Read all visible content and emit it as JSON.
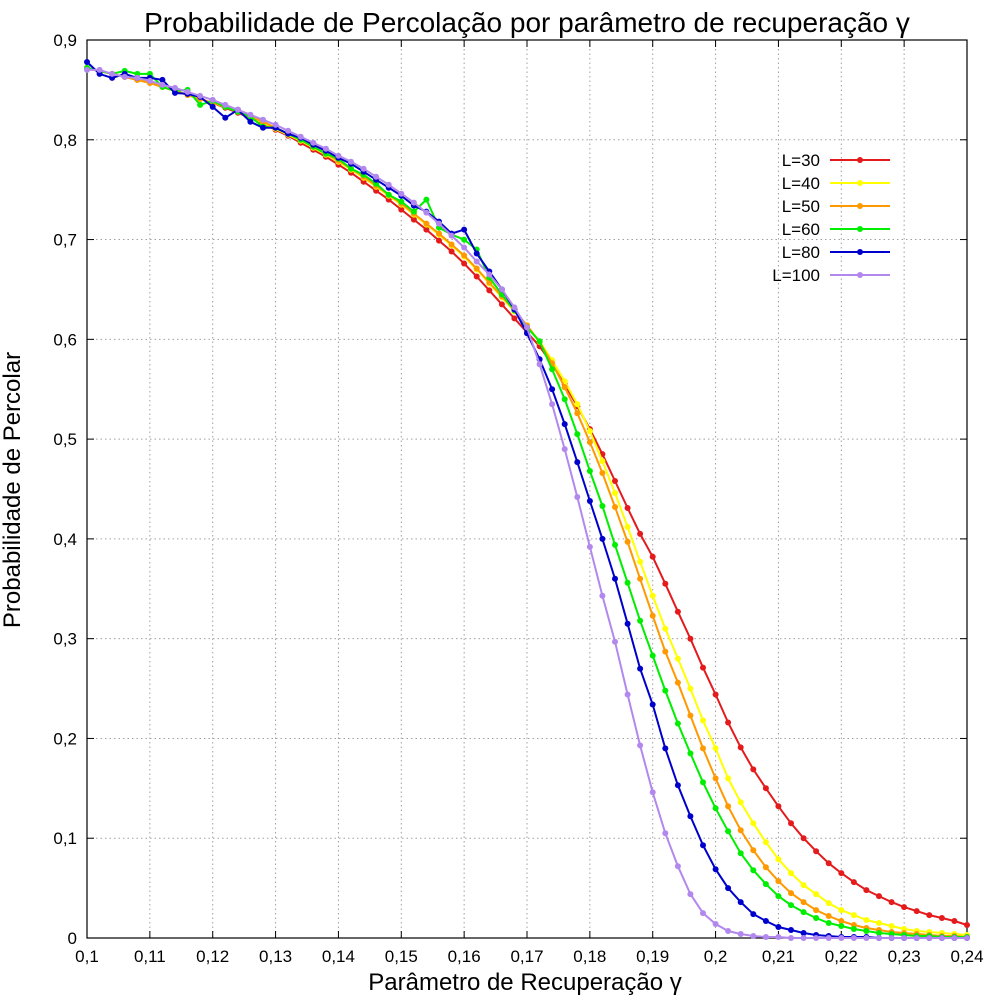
{
  "chart_data": {
    "type": "line",
    "title": "Probabilidade de Percolação por parâmetro de recuperação γ",
    "xlabel": "Parâmetro de Recuperação γ",
    "ylabel": "Probabilidade de Percolar",
    "xlim": [
      0.1,
      0.24
    ],
    "ylim": [
      0,
      0.9
    ],
    "grid": true,
    "legend_position": "top-right",
    "x_ticks": [
      {
        "v": 0.1,
        "label": "0,1"
      },
      {
        "v": 0.11,
        "label": "0,11"
      },
      {
        "v": 0.12,
        "label": "0,12"
      },
      {
        "v": 0.13,
        "label": "0,13"
      },
      {
        "v": 0.14,
        "label": "0,14"
      },
      {
        "v": 0.15,
        "label": "0,15"
      },
      {
        "v": 0.16,
        "label": "0,16"
      },
      {
        "v": 0.17,
        "label": "0,17"
      },
      {
        "v": 0.18,
        "label": "0,18"
      },
      {
        "v": 0.19,
        "label": "0,19"
      },
      {
        "v": 0.2,
        "label": "0,2"
      },
      {
        "v": 0.21,
        "label": "0,21"
      },
      {
        "v": 0.22,
        "label": "0,22"
      },
      {
        "v": 0.23,
        "label": "0,23"
      },
      {
        "v": 0.24,
        "label": "0,24"
      }
    ],
    "y_ticks": [
      {
        "v": 0.0,
        "label": "0"
      },
      {
        "v": 0.1,
        "label": "0,1"
      },
      {
        "v": 0.2,
        "label": "0,2"
      },
      {
        "v": 0.3,
        "label": "0,3"
      },
      {
        "v": 0.4,
        "label": "0,4"
      },
      {
        "v": 0.5,
        "label": "0,5"
      },
      {
        "v": 0.6,
        "label": "0,6"
      },
      {
        "v": 0.7,
        "label": "0,7"
      },
      {
        "v": 0.8,
        "label": "0,8"
      },
      {
        "v": 0.9,
        "label": "0,9"
      }
    ],
    "x": [
      0.1,
      0.102,
      0.104,
      0.106,
      0.108,
      0.11,
      0.112,
      0.114,
      0.116,
      0.118,
      0.12,
      0.122,
      0.124,
      0.126,
      0.128,
      0.13,
      0.132,
      0.134,
      0.136,
      0.138,
      0.14,
      0.142,
      0.144,
      0.146,
      0.148,
      0.15,
      0.152,
      0.154,
      0.156,
      0.158,
      0.16,
      0.162,
      0.164,
      0.166,
      0.168,
      0.17,
      0.172,
      0.174,
      0.176,
      0.178,
      0.18,
      0.182,
      0.184,
      0.186,
      0.188,
      0.19,
      0.192,
      0.194,
      0.196,
      0.198,
      0.2,
      0.202,
      0.204,
      0.206,
      0.208,
      0.21,
      0.212,
      0.214,
      0.216,
      0.218,
      0.22,
      0.222,
      0.224,
      0.226,
      0.228,
      0.23,
      0.232,
      0.234,
      0.236,
      0.238,
      0.24
    ],
    "series": [
      {
        "name": "L=30",
        "color": "#e41a1c",
        "values": [
          0.872,
          0.869,
          0.866,
          0.863,
          0.86,
          0.857,
          0.853,
          0.849,
          0.845,
          0.841,
          0.837,
          0.832,
          0.827,
          0.822,
          0.816,
          0.81,
          0.804,
          0.797,
          0.79,
          0.783,
          0.775,
          0.767,
          0.758,
          0.749,
          0.74,
          0.73,
          0.72,
          0.71,
          0.699,
          0.688,
          0.676,
          0.663,
          0.649,
          0.635,
          0.621,
          0.607,
          0.593,
          0.575,
          0.555,
          0.533,
          0.51,
          0.485,
          0.458,
          0.431,
          0.405,
          0.382,
          0.355,
          0.327,
          0.3,
          0.271,
          0.244,
          0.216,
          0.191,
          0.169,
          0.15,
          0.132,
          0.115,
          0.1,
          0.087,
          0.075,
          0.065,
          0.056,
          0.048,
          0.042,
          0.036,
          0.031,
          0.027,
          0.023,
          0.02,
          0.017,
          0.013
        ]
      },
      {
        "name": "L=40",
        "color": "#ffff00",
        "values": [
          0.872,
          0.869,
          0.866,
          0.863,
          0.86,
          0.857,
          0.853,
          0.849,
          0.845,
          0.841,
          0.837,
          0.833,
          0.828,
          0.823,
          0.817,
          0.811,
          0.805,
          0.799,
          0.792,
          0.785,
          0.778,
          0.77,
          0.762,
          0.753,
          0.744,
          0.735,
          0.725,
          0.715,
          0.705,
          0.694,
          0.683,
          0.67,
          0.656,
          0.642,
          0.628,
          0.614,
          0.598,
          0.579,
          0.558,
          0.535,
          0.508,
          0.478,
          0.446,
          0.412,
          0.377,
          0.343,
          0.31,
          0.28,
          0.25,
          0.218,
          0.19,
          0.16,
          0.136,
          0.115,
          0.096,
          0.079,
          0.065,
          0.053,
          0.044,
          0.035,
          0.028,
          0.023,
          0.018,
          0.015,
          0.012,
          0.009,
          0.007,
          0.006,
          0.005,
          0.004,
          0.003
        ]
      },
      {
        "name": "L=50",
        "color": "#ff9900",
        "values": [
          0.872,
          0.869,
          0.866,
          0.863,
          0.86,
          0.857,
          0.853,
          0.849,
          0.845,
          0.841,
          0.837,
          0.833,
          0.828,
          0.823,
          0.818,
          0.812,
          0.806,
          0.8,
          0.793,
          0.786,
          0.779,
          0.771,
          0.763,
          0.754,
          0.745,
          0.736,
          0.726,
          0.716,
          0.706,
          0.695,
          0.684,
          0.671,
          0.657,
          0.643,
          0.629,
          0.614,
          0.597,
          0.576,
          0.552,
          0.526,
          0.497,
          0.466,
          0.432,
          0.397,
          0.36,
          0.323,
          0.287,
          0.256,
          0.223,
          0.19,
          0.16,
          0.132,
          0.108,
          0.088,
          0.071,
          0.057,
          0.045,
          0.036,
          0.028,
          0.022,
          0.017,
          0.013,
          0.01,
          0.008,
          0.006,
          0.005,
          0.004,
          0.003,
          0.002,
          0.002,
          0.001
        ]
      },
      {
        "name": "L=60",
        "color": "#00ee00",
        "values": [
          0.872,
          0.869,
          0.866,
          0.869,
          0.866,
          0.866,
          0.853,
          0.849,
          0.85,
          0.835,
          0.839,
          0.833,
          0.828,
          0.823,
          0.813,
          0.812,
          0.806,
          0.8,
          0.793,
          0.786,
          0.781,
          0.771,
          0.765,
          0.756,
          0.745,
          0.738,
          0.728,
          0.74,
          0.712,
          0.705,
          0.7,
          0.69,
          0.662,
          0.645,
          0.629,
          0.612,
          0.598,
          0.57,
          0.54,
          0.505,
          0.468,
          0.433,
          0.394,
          0.356,
          0.318,
          0.283,
          0.248,
          0.215,
          0.185,
          0.156,
          0.13,
          0.107,
          0.085,
          0.068,
          0.054,
          0.042,
          0.033,
          0.026,
          0.02,
          0.015,
          0.012,
          0.009,
          0.007,
          0.005,
          0.004,
          0.003,
          0.002,
          0.002,
          0.001,
          0.001,
          0.001
        ]
      },
      {
        "name": "L=80",
        "color": "#0000cc",
        "values": [
          0.878,
          0.866,
          0.862,
          0.866,
          0.862,
          0.862,
          0.86,
          0.847,
          0.846,
          0.843,
          0.833,
          0.822,
          0.83,
          0.818,
          0.812,
          0.812,
          0.806,
          0.802,
          0.795,
          0.789,
          0.782,
          0.776,
          0.768,
          0.76,
          0.752,
          0.744,
          0.734,
          0.728,
          0.718,
          0.706,
          0.71,
          0.686,
          0.668,
          0.65,
          0.63,
          0.606,
          0.58,
          0.55,
          0.515,
          0.477,
          0.438,
          0.4,
          0.36,
          0.315,
          0.27,
          0.234,
          0.19,
          0.153,
          0.122,
          0.093,
          0.069,
          0.05,
          0.036,
          0.024,
          0.017,
          0.011,
          0.008,
          0.005,
          0.003,
          0.002,
          0.001,
          0.001,
          0.001,
          0.0,
          0.0,
          0.0,
          0.0,
          0.0,
          0.0,
          0.0,
          0.0
        ]
      },
      {
        "name": "L=100",
        "color": "#b388ee",
        "values": [
          0.87,
          0.87,
          0.866,
          0.863,
          0.862,
          0.859,
          0.855,
          0.852,
          0.848,
          0.844,
          0.84,
          0.835,
          0.83,
          0.825,
          0.82,
          0.815,
          0.809,
          0.803,
          0.797,
          0.791,
          0.784,
          0.778,
          0.771,
          0.763,
          0.755,
          0.746,
          0.737,
          0.727,
          0.716,
          0.704,
          0.692,
          0.678,
          0.665,
          0.65,
          0.632,
          0.612,
          0.575,
          0.535,
          0.49,
          0.442,
          0.392,
          0.343,
          0.297,
          0.244,
          0.193,
          0.146,
          0.105,
          0.072,
          0.044,
          0.025,
          0.014,
          0.007,
          0.004,
          0.002,
          0.001,
          0.001,
          0.0,
          0.0,
          0.0,
          0.0,
          0.0,
          0.0,
          0.0,
          0.0,
          0.0,
          0.0,
          0.0,
          0.0,
          0.0,
          0.0,
          0.0
        ]
      }
    ]
  }
}
